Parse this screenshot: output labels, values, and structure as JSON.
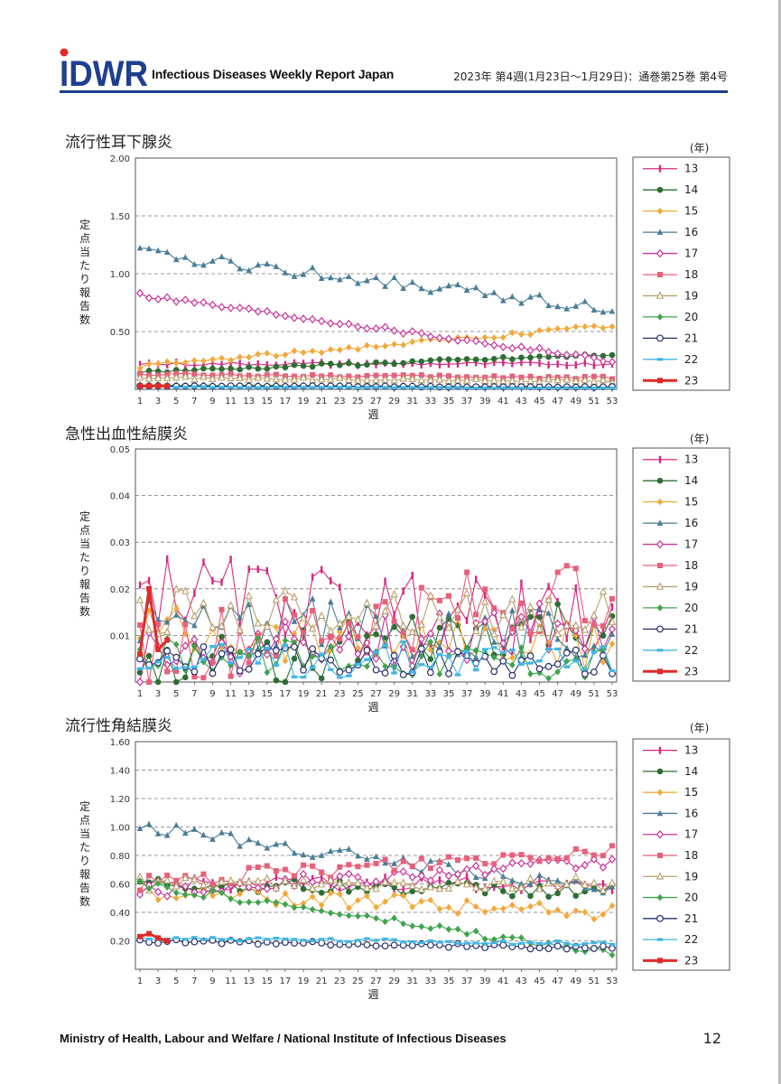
{
  "header": {
    "logo_text": "IDWR",
    "title": "Infectious Diseases Weekly Report Japan",
    "issue": "2023年 第4週(1月23日〜1月29日)：通巻第25巻  第4号"
  },
  "legend_years": [
    "13",
    "14",
    "15",
    "16",
    "17",
    "18",
    "19",
    "20",
    "21",
    "22",
    "23"
  ],
  "series_colors": [
    "#d6287f",
    "#2e6e34",
    "#f2a93b",
    "#4a7d96",
    "#c8339a",
    "#e8607a",
    "#b9a06e",
    "#3fa34d",
    "#27306e",
    "#41b6e6",
    "#e02a2a"
  ],
  "chart_data": [
    {
      "type": "line",
      "title": "流行性耳下腺炎",
      "ylabel": "定点当たり報告数",
      "xlabel": "週",
      "unit_label": "(年)",
      "ylim": [
        0,
        2.0
      ],
      "yticks": [
        "0.50",
        "1.00",
        "1.50",
        "2.00"
      ],
      "xticks": [
        "1",
        "3",
        "5",
        "7",
        "9",
        "11",
        "13",
        "15",
        "17",
        "19",
        "21",
        "23",
        "25",
        "27",
        "29",
        "31",
        "33",
        "35",
        "37",
        "39",
        "41",
        "43",
        "45",
        "47",
        "49",
        "51",
        "53"
      ],
      "series": [
        {
          "name": "13",
          "start": 0.22,
          "end": 0.22,
          "amp": 0.015
        },
        {
          "name": "14",
          "start": 0.15,
          "end": 0.3,
          "amp": 0.015
        },
        {
          "name": "15",
          "start": 0.2,
          "end": 0.55,
          "amp": 0.02
        },
        {
          "name": "16",
          "start": 1.18,
          "end": 0.7,
          "amp": 0.05
        },
        {
          "name": "17",
          "start": 0.82,
          "end": 0.25,
          "amp": 0.02
        },
        {
          "name": "18",
          "start": 0.13,
          "end": 0.1,
          "amp": 0.012
        },
        {
          "name": "19",
          "start": 0.1,
          "end": 0.07,
          "amp": 0.012
        },
        {
          "name": "20",
          "start": 0.04,
          "end": 0.02,
          "amp": 0.005
        },
        {
          "name": "21",
          "start": 0.03,
          "end": 0.02,
          "amp": 0.004
        },
        {
          "name": "22",
          "start": 0.02,
          "end": 0.01,
          "amp": 0.003
        },
        {
          "name": "23",
          "values": [
            0.03,
            0.03,
            0.03,
            0.03
          ]
        }
      ]
    },
    {
      "type": "line",
      "title": "急性出血性結膜炎",
      "ylabel": "定点当たり報告数",
      "xlabel": "週",
      "unit_label": "(年)",
      "ylim": [
        0,
        0.05
      ],
      "yticks": [
        "0.01",
        "0.02",
        "0.03",
        "0.04",
        "0.05"
      ],
      "xticks": [
        "1",
        "3",
        "5",
        "7",
        "9",
        "11",
        "13",
        "15",
        "17",
        "19",
        "21",
        "23",
        "25",
        "27",
        "29",
        "31",
        "33",
        "35",
        "37",
        "39",
        "41",
        "43",
        "45",
        "47",
        "49",
        "51",
        "53"
      ],
      "series": [
        {
          "name": "13",
          "start": 0.02,
          "end": 0.012,
          "amp": 0.008
        },
        {
          "name": "14",
          "start": 0.003,
          "end": 0.012,
          "amp": 0.006
        },
        {
          "name": "15",
          "start": 0.012,
          "end": 0.007,
          "amp": 0.006
        },
        {
          "name": "16",
          "start": 0.013,
          "end": 0.01,
          "amp": 0.006
        },
        {
          "name": "17",
          "start": 0.005,
          "end": 0.012,
          "amp": 0.006
        },
        {
          "name": "18",
          "start": 0.006,
          "end": 0.02,
          "amp": 0.008
        },
        {
          "name": "19",
          "start": 0.015,
          "end": 0.015,
          "amp": 0.005
        },
        {
          "name": "20",
          "start": 0.006,
          "end": 0.004,
          "amp": 0.004
        },
        {
          "name": "21",
          "start": 0.005,
          "end": 0.004,
          "amp": 0.003
        },
        {
          "name": "22",
          "start": 0.004,
          "end": 0.006,
          "amp": 0.004
        },
        {
          "name": "23",
          "values": [
            0.006,
            0.02,
            0.007,
            0.009
          ]
        }
      ]
    },
    {
      "type": "line",
      "title": "流行性角結膜炎",
      "ylabel": "定点当たり報告数",
      "xlabel": "週",
      "unit_label": "(年)",
      "ylim": [
        0,
        1.6
      ],
      "yticks": [
        "0.20",
        "0.40",
        "0.60",
        "0.80",
        "1.00",
        "1.20",
        "1.40",
        "1.60"
      ],
      "xticks": [
        "1",
        "3",
        "5",
        "7",
        "9",
        "11",
        "13",
        "15",
        "17",
        "19",
        "21",
        "23",
        "25",
        "27",
        "29",
        "31",
        "33",
        "35",
        "37",
        "39",
        "41",
        "43",
        "45",
        "47",
        "49",
        "51",
        "53"
      ],
      "series": [
        {
          "name": "13",
          "start": 0.6,
          "end": 0.6,
          "amp": 0.05
        },
        {
          "name": "14",
          "start": 0.6,
          "end": 0.55,
          "amp": 0.05
        },
        {
          "name": "15",
          "start": 0.55,
          "end": 0.4,
          "amp": 0.06
        },
        {
          "name": "16",
          "start": 1.0,
          "end": 0.55,
          "amp": 0.05
        },
        {
          "name": "17",
          "start": 0.55,
          "end": 0.75,
          "amp": 0.05
        },
        {
          "name": "18",
          "start": 0.6,
          "end": 0.85,
          "amp": 0.06
        },
        {
          "name": "19",
          "start": 0.6,
          "end": 0.6,
          "amp": 0.05
        },
        {
          "name": "20",
          "start": 0.6,
          "end": 0.1,
          "amp": 0.03
        },
        {
          "name": "21",
          "start": 0.2,
          "end": 0.15,
          "amp": 0.015
        },
        {
          "name": "22",
          "start": 0.22,
          "end": 0.18,
          "amp": 0.015
        },
        {
          "name": "23",
          "values": [
            0.23,
            0.25,
            0.22,
            0.2
          ]
        }
      ]
    }
  ],
  "footer": {
    "org": "Ministry of Health, Labour and Welfare / National Institute of Infectious Diseases",
    "page": "12"
  }
}
